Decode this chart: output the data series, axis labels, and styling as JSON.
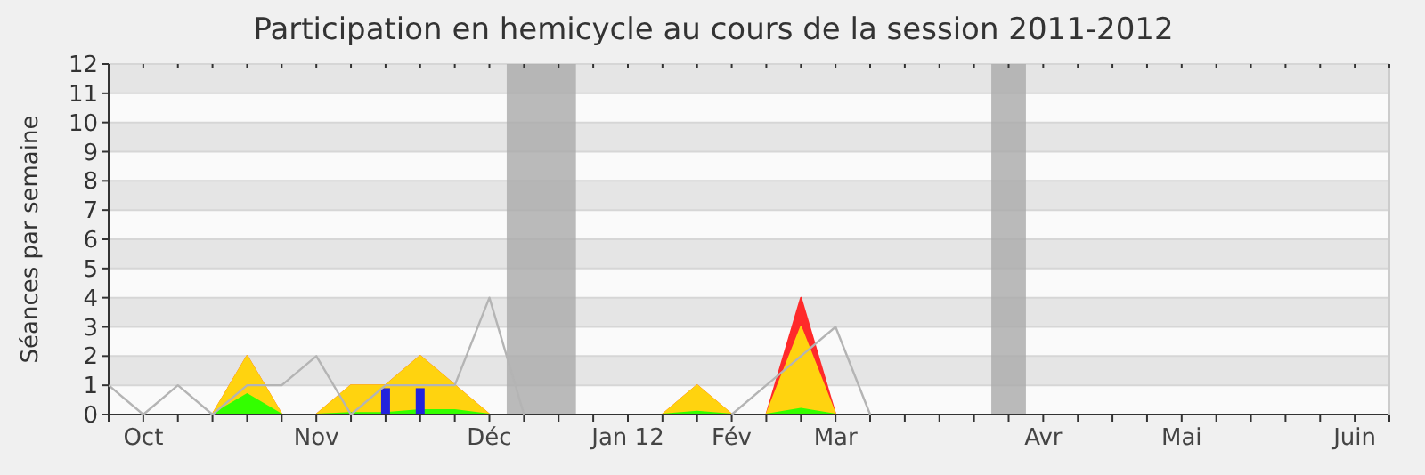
{
  "chart_data": {
    "type": "area",
    "title": "Participation en hemicycle au cours de la session 2011-2012",
    "ylabel": "Séances par semaine",
    "categories": [
      null,
      "Oct",
      null,
      null,
      null,
      null,
      "Nov",
      null,
      null,
      null,
      null,
      "Déc",
      null,
      null,
      null,
      "Jan 12",
      null,
      null,
      "Fév",
      null,
      null,
      "Mar",
      null,
      null,
      null,
      null,
      null,
      "Avr",
      null,
      null,
      null,
      "Mai",
      null,
      null,
      null,
      null,
      "Juin",
      null
    ],
    "ylim": [
      0,
      12
    ],
    "yticks": [
      0,
      1,
      2,
      3,
      4,
      5,
      6,
      7,
      8,
      9,
      10,
      11,
      12
    ],
    "grid": "y",
    "series": [
      {
        "type": "bar",
        "color": "#aaaaaa",
        "values": [
          null,
          null,
          null,
          null,
          null,
          null,
          null,
          null,
          null,
          null,
          null,
          null,
          12,
          12,
          null,
          null,
          null,
          null,
          null,
          null,
          null,
          null,
          null,
          null,
          null,
          null,
          12,
          null,
          null,
          null,
          null,
          null,
          null,
          null,
          null,
          null,
          null,
          null
        ]
      },
      {
        "type": "line",
        "color": "#b4b4b4",
        "values": [
          1,
          0,
          1,
          0,
          1,
          1,
          2,
          0,
          1,
          1,
          1,
          4,
          0,
          null,
          null,
          null,
          null,
          null,
          0,
          1,
          2,
          3,
          0,
          null,
          null,
          null,
          null,
          null,
          null,
          null,
          null,
          null,
          null,
          null,
          null,
          null,
          null,
          null
        ]
      },
      {
        "color": "#ff2a2a",
        "values": [
          0,
          0,
          0,
          0,
          2,
          0,
          0,
          1,
          1,
          2,
          1,
          0,
          0,
          0,
          0,
          0,
          0,
          1,
          0,
          0,
          4,
          0,
          0,
          0,
          0,
          0,
          0,
          0,
          0,
          0,
          0,
          0,
          0,
          0,
          0,
          0,
          0,
          0
        ]
      },
      {
        "color": "#ffd30f",
        "values": [
          0,
          0,
          0,
          0,
          2,
          0,
          0,
          1,
          1,
          2,
          1,
          0,
          0,
          0,
          0,
          0,
          0,
          1,
          0,
          0,
          3,
          0,
          0,
          0,
          0,
          0,
          0,
          0,
          0,
          0,
          0,
          0,
          0,
          0,
          0,
          0,
          0,
          0
        ]
      },
      {
        "color": "#33ff00",
        "values": [
          0,
          0,
          0,
          0,
          0.7,
          0,
          0,
          0.05,
          0.05,
          0.15,
          0.15,
          0,
          0,
          0,
          0,
          0,
          0,
          0.1,
          0,
          0,
          0.2,
          0,
          0,
          0,
          0,
          0,
          0,
          0,
          0,
          0,
          0,
          0,
          0,
          0,
          0,
          0,
          0,
          0
        ]
      },
      {
        "type": "bar",
        "color": "#2222dd",
        "values": [
          null,
          null,
          null,
          null,
          null,
          null,
          null,
          null,
          0.9,
          0.9,
          null,
          null,
          null,
          null,
          null,
          null,
          null,
          null,
          null,
          null,
          null,
          null,
          null,
          null,
          null,
          null,
          null,
          null,
          null,
          null,
          null,
          null,
          null,
          null,
          null,
          null,
          null,
          null
        ]
      }
    ]
  }
}
